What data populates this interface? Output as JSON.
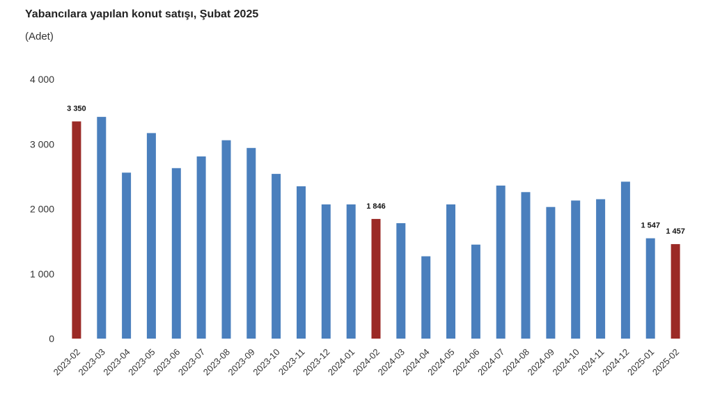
{
  "title": "Yabancılara yapılan konut satışı, Şubat 2025",
  "subtitle": "(Adet)",
  "colors": {
    "normal": "#4a7fbd",
    "highlight": "#9b2a26"
  },
  "chart_data": {
    "type": "bar",
    "title": "Yabancılara yapılan konut satışı, Şubat 2025",
    "subtitle": "(Adet)",
    "xlabel": "",
    "ylabel": "",
    "ylim": [
      0,
      4000
    ],
    "yticks": [
      0,
      1000,
      2000,
      3000,
      4000
    ],
    "ytick_labels": [
      "0",
      "1 000",
      "2 000",
      "3 000",
      "4 000"
    ],
    "grid": false,
    "categories": [
      "2023-02",
      "2023-03",
      "2023-04",
      "2023-05",
      "2023-06",
      "2023-07",
      "2023-08",
      "2023-09",
      "2023-10",
      "2023-11",
      "2023-12",
      "2024-01",
      "2024-02",
      "2024-03",
      "2024-04",
      "2024-05",
      "2024-06",
      "2024-07",
      "2024-08",
      "2024-09",
      "2024-10",
      "2024-11",
      "2024-12",
      "2025-01",
      "2025-02"
    ],
    "values": [
      3350,
      3420,
      2560,
      3170,
      2630,
      2810,
      3060,
      2940,
      2540,
      2350,
      2070,
      2070,
      1846,
      1780,
      1270,
      2070,
      1450,
      2360,
      2260,
      2030,
      2130,
      2150,
      2420,
      1547,
      1457
    ],
    "highlighted": [
      "2023-02",
      "2024-02",
      "2025-02"
    ],
    "data_labels": [
      {
        "category": "2023-02",
        "text": "3 350"
      },
      {
        "category": "2024-02",
        "text": "1 846"
      },
      {
        "category": "2025-01",
        "text": "1 547"
      },
      {
        "category": "2025-02",
        "text": "1 457"
      }
    ]
  }
}
